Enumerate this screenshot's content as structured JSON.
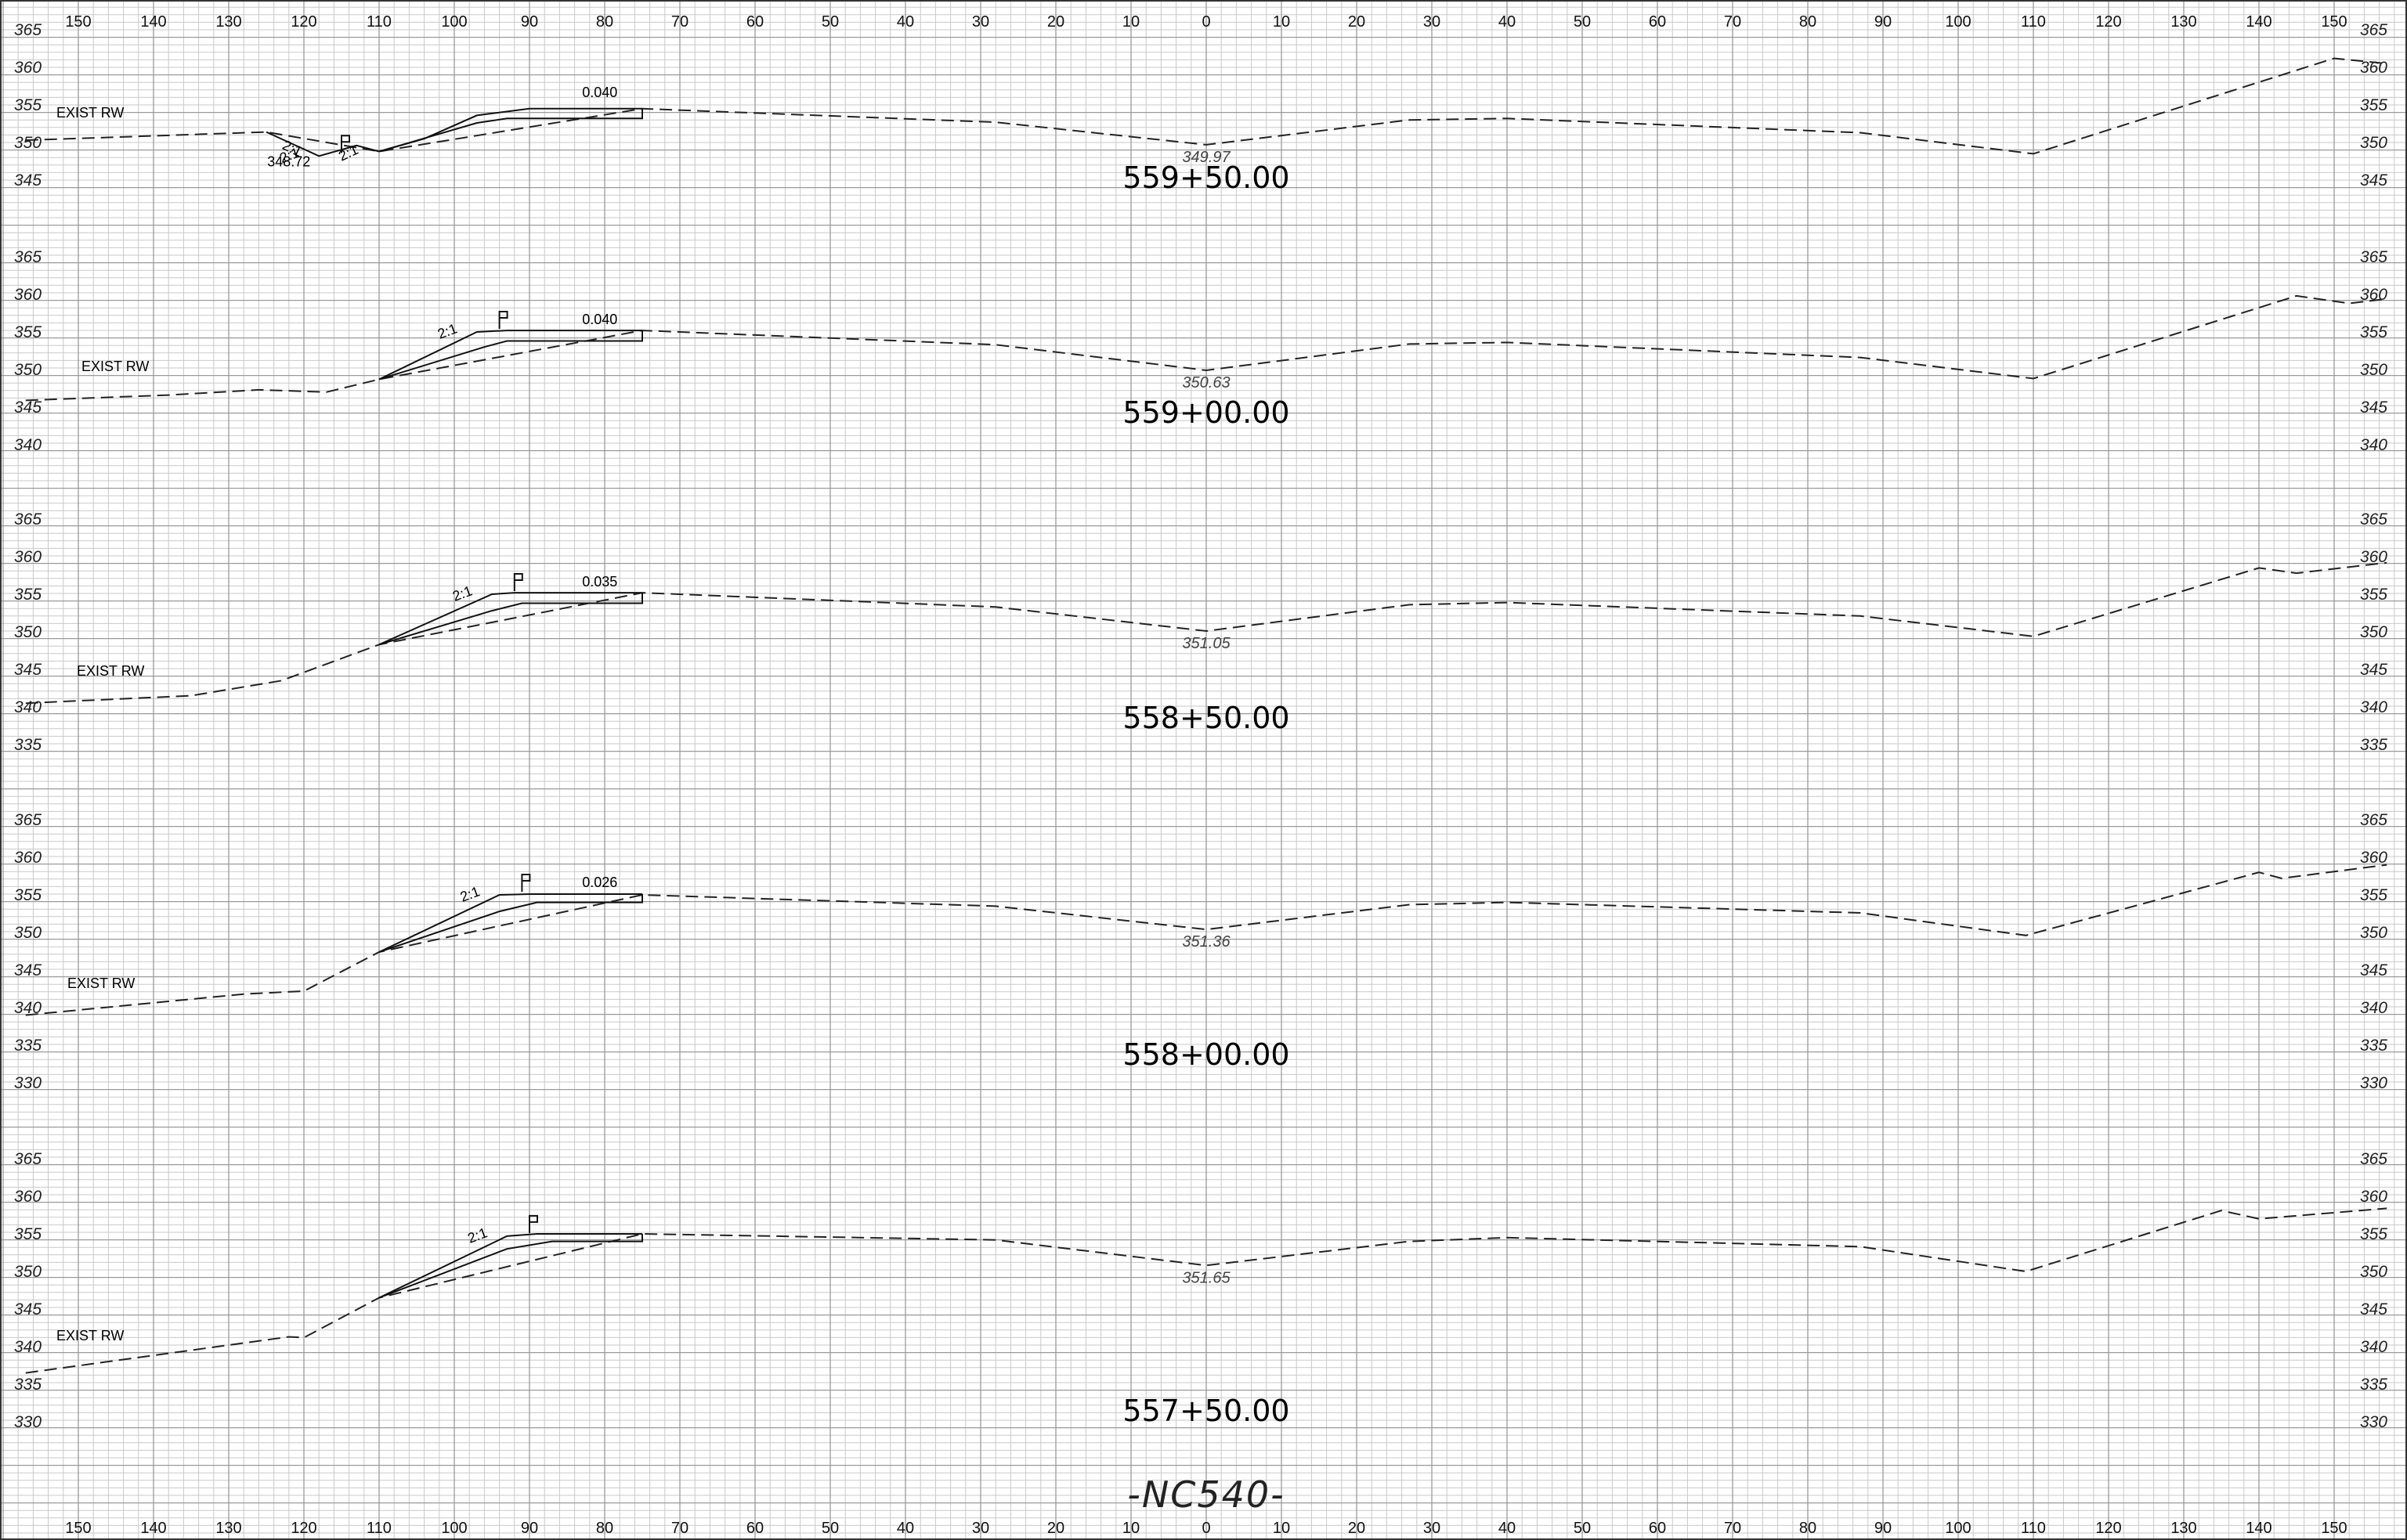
{
  "title": "-NC540-",
  "colors": {
    "grid_minor": "#c9c9c9",
    "grid_major": "#9a9a9a",
    "ink": "#111111"
  },
  "x_axis": {
    "labels": [
      "150",
      "140",
      "130",
      "120",
      "110",
      "100",
      "90",
      "80",
      "70",
      "60",
      "50",
      "40",
      "30",
      "20",
      "10",
      "0",
      "10",
      "20",
      "30",
      "40",
      "50",
      "60",
      "70",
      "80",
      "90",
      "100",
      "110",
      "120",
      "130",
      "140",
      "150"
    ],
    "values": [
      -150,
      -140,
      -130,
      -120,
      -110,
      -100,
      -90,
      -80,
      -70,
      -60,
      -50,
      -40,
      -30,
      -20,
      -10,
      0,
      10,
      20,
      30,
      40,
      50,
      60,
      70,
      80,
      90,
      100,
      110,
      120,
      130,
      140,
      150
    ]
  },
  "sections": [
    {
      "station": "559+50.00",
      "elev_labels": [
        "365",
        "360",
        "355",
        "350",
        "345"
      ],
      "elev_values": [
        365,
        360,
        355,
        350,
        345
      ],
      "exist_rw": "EXIST RW",
      "cl_elev": "349.97",
      "slope_label": "2:1",
      "cross_slope": "0.040",
      "ditch_labels": [
        "2:1",
        "2:1"
      ],
      "ditch_elev": "348.72",
      "ground": [
        [
          -157,
          350.3
        ],
        [
          -125,
          351.4
        ],
        [
          -110,
          348.8
        ],
        [
          -75,
          354.5
        ],
        [
          -28,
          352.7
        ],
        [
          0,
          349.7
        ],
        [
          27,
          353
        ],
        [
          40,
          353.2
        ],
        [
          87,
          351.3
        ],
        [
          110,
          348.5
        ],
        [
          150,
          361.2
        ],
        [
          157,
          360.5
        ]
      ],
      "design": [
        [
          -125,
          351.4
        ],
        [
          -118,
          348.2
        ],
        [
          -113,
          349.6
        ],
        [
          -110,
          348.8
        ],
        [
          -104,
          350.5
        ],
        [
          -97,
          353.6
        ],
        [
          -90,
          354.5
        ],
        [
          -75,
          354.5
        ]
      ],
      "sub": [
        [
          -110,
          348.8
        ],
        [
          -97,
          352.6
        ],
        [
          -93,
          353.2
        ],
        [
          -75,
          353.2
        ],
        [
          -75,
          354.5
        ]
      ]
    },
    {
      "station": "559+00.00",
      "elev_labels": [
        "365",
        "360",
        "355",
        "350",
        "345",
        "340"
      ],
      "elev_values": [
        365,
        360,
        355,
        350,
        345,
        340
      ],
      "exist_rw": "EXIST RW",
      "cl_elev": "350.63",
      "slope_label": "2:1",
      "cross_slope": "0.040",
      "ground": [
        [
          -157,
          345.9
        ],
        [
          -138,
          346.6
        ],
        [
          -126,
          347.3
        ],
        [
          -117,
          347.0
        ],
        [
          -110,
          348.7
        ],
        [
          -75,
          355.2
        ],
        [
          -28,
          353.3
        ],
        [
          0,
          349.9
        ],
        [
          27,
          353.4
        ],
        [
          40,
          353.6
        ],
        [
          87,
          351.6
        ],
        [
          110,
          348.8
        ],
        [
          145,
          359.8
        ],
        [
          152,
          358.8
        ],
        [
          157,
          359.4
        ]
      ],
      "design": [
        [
          -110,
          348.7
        ],
        [
          -97,
          355.0
        ],
        [
          -93,
          355.2
        ],
        [
          -75,
          355.2
        ]
      ],
      "sub": [
        [
          -110,
          348.7
        ],
        [
          -96,
          353.0
        ],
        [
          -93,
          353.8
        ],
        [
          -75,
          353.8
        ],
        [
          -75,
          355.2
        ]
      ]
    },
    {
      "station": "558+50.00",
      "elev_labels": [
        "365",
        "360",
        "355",
        "350",
        "345",
        "340",
        "335"
      ],
      "elev_values": [
        365,
        360,
        355,
        350,
        345,
        340,
        335
      ],
      "exist_rw": "EXIST RW",
      "cl_elev": "351.05",
      "slope_label": "2:1",
      "cross_slope": "0.035",
      "ground": [
        [
          -157,
          340.5
        ],
        [
          -135,
          341.5
        ],
        [
          -123,
          343.5
        ],
        [
          -110,
          348.3
        ],
        [
          -75,
          355.2
        ],
        [
          -28,
          353.3
        ],
        [
          0,
          350.1
        ],
        [
          27,
          353.6
        ],
        [
          40,
          353.9
        ],
        [
          87,
          352.1
        ],
        [
          110,
          349.4
        ],
        [
          140,
          358.5
        ],
        [
          145,
          357.8
        ],
        [
          157,
          359.2
        ]
      ],
      "design": [
        [
          -110,
          348.3
        ],
        [
          -95,
          355.0
        ],
        [
          -92,
          355.2
        ],
        [
          -75,
          355.2
        ]
      ],
      "sub": [
        [
          -110,
          348.3
        ],
        [
          -95,
          352.8
        ],
        [
          -91,
          353.8
        ],
        [
          -75,
          353.8
        ],
        [
          -75,
          355.2
        ]
      ]
    },
    {
      "station": "558+00.00",
      "elev_labels": [
        "365",
        "360",
        "355",
        "350",
        "345",
        "340",
        "335",
        "330"
      ],
      "elev_values": [
        365,
        360,
        355,
        350,
        345,
        340,
        335,
        330
      ],
      "exist_rw": "EXIST RW",
      "cl_elev": "351.36",
      "slope_label": "2:1",
      "cross_slope": "0.026",
      "ground": [
        [
          -157,
          339.0
        ],
        [
          -128,
          341.8
        ],
        [
          -120,
          342.2
        ],
        [
          -110,
          347.4
        ],
        [
          -75,
          355.0
        ],
        [
          -28,
          353.5
        ],
        [
          0,
          350.4
        ],
        [
          27,
          353.7
        ],
        [
          40,
          354.0
        ],
        [
          87,
          352.6
        ],
        [
          109,
          349.6
        ],
        [
          140,
          358.0
        ],
        [
          143,
          357.2
        ],
        [
          157,
          359.0
        ]
      ],
      "design": [
        [
          -110,
          347.4
        ],
        [
          -94,
          355.0
        ],
        [
          -90,
          355.1
        ],
        [
          -75,
          355.1
        ]
      ],
      "sub": [
        [
          -110,
          347.4
        ],
        [
          -94,
          352.8
        ],
        [
          -89,
          354.0
        ],
        [
          -75,
          354.0
        ],
        [
          -75,
          355.1
        ]
      ]
    },
    {
      "station": "557+50.00",
      "elev_labels": [
        "365",
        "360",
        "355",
        "350",
        "345",
        "340",
        "335",
        "330"
      ],
      "elev_values": [
        365,
        360,
        355,
        350,
        345,
        340,
        335,
        330
      ],
      "exist_rw": "EXIST RW",
      "cl_elev": "351.65",
      "slope_label": "2:1",
      "cross_slope": "",
      "ground": [
        [
          -157,
          336.5
        ],
        [
          -122,
          341.3
        ],
        [
          -120,
          341.2
        ],
        [
          -110,
          346.5
        ],
        [
          -75,
          355.0
        ],
        [
          -28,
          354.2
        ],
        [
          0,
          350.8
        ],
        [
          27,
          354.0
        ],
        [
          40,
          354.5
        ],
        [
          87,
          353.3
        ],
        [
          109,
          350.0
        ],
        [
          135,
          358.1
        ],
        [
          140,
          357.0
        ],
        [
          157,
          358.4
        ]
      ],
      "design": [
        [
          -110,
          346.5
        ],
        [
          -93,
          354.7
        ],
        [
          -89,
          355.0
        ],
        [
          -75,
          355.0
        ]
      ],
      "sub": [
        [
          -110,
          346.5
        ],
        [
          -93,
          353.0
        ],
        [
          -87,
          354.0
        ],
        [
          -75,
          354.0
        ],
        [
          -75,
          355.0
        ]
      ]
    }
  ]
}
